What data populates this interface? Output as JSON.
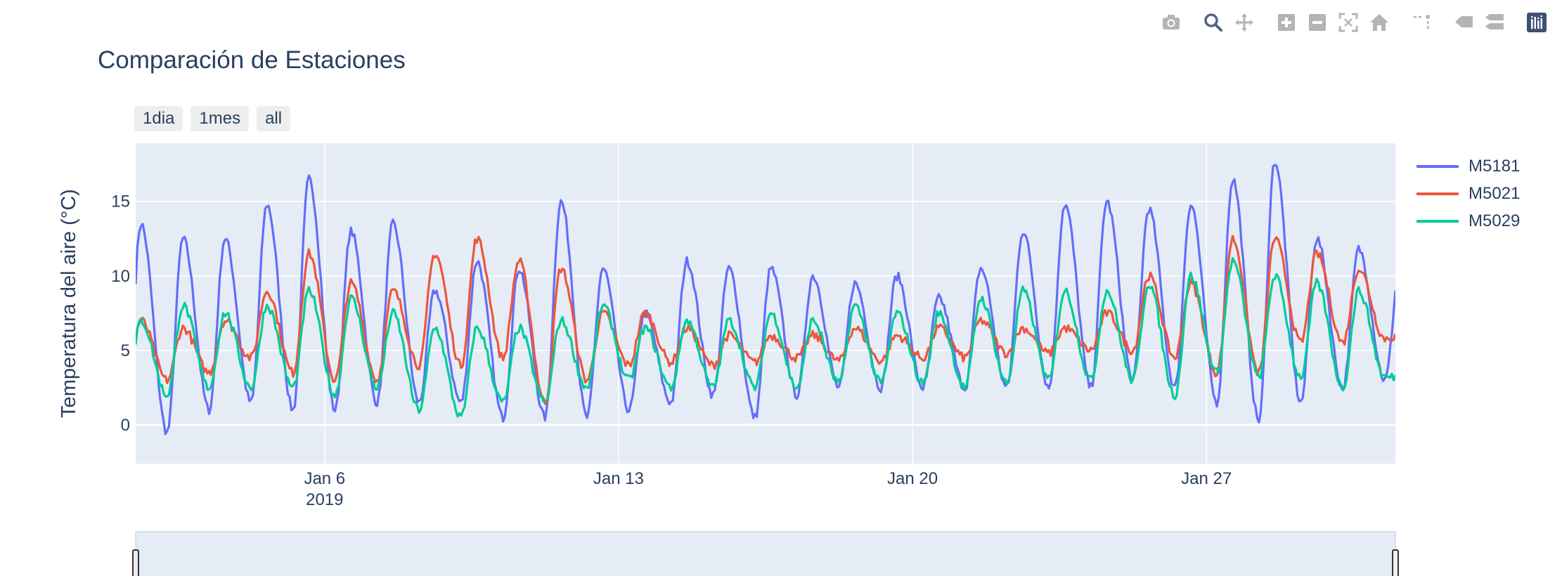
{
  "modebar": {
    "buttons": [
      {
        "icon": "camera-icon"
      },
      {
        "icon": "zoom-icon"
      },
      {
        "icon": "pan-icon"
      },
      {
        "icon": "zoom-in-icon"
      },
      {
        "icon": "zoom-out-icon"
      },
      {
        "icon": "autoscale-icon"
      },
      {
        "icon": "home-icon"
      },
      {
        "icon": "spike-lines-icon"
      },
      {
        "icon": "hover-closest-icon"
      },
      {
        "icon": "hover-compare-icon"
      },
      {
        "icon": "plotly-logo-icon"
      }
    ]
  },
  "range_selector": {
    "buttons": [
      "1dia",
      "1mes",
      "all"
    ]
  },
  "colors": {
    "plot_bg": "#e5ecf6",
    "grid": "#ffffff",
    "text": "#2a3f5f",
    "series": [
      "#636efa",
      "#ef553b",
      "#00cc96"
    ]
  },
  "chart_data": {
    "type": "line",
    "title": "Comparación de Estaciones",
    "xlabel": "",
    "ylabel": "Temperatura del aire (°C)",
    "x_range": [
      "2019-01-01T12:00",
      "2019-01-31T12:00"
    ],
    "xlim": [
      0.5,
      30.5
    ],
    "ylim": [
      -2.6,
      18.9
    ],
    "y_ticks": [
      0,
      5,
      10,
      15
    ],
    "x_ticks": [
      {
        "x": 5,
        "label": "Jan 6",
        "sublabel": "2019"
      },
      {
        "x": 12,
        "label": "Jan 13",
        "sublabel": ""
      },
      {
        "x": 19,
        "label": "Jan 20",
        "sublabel": ""
      },
      {
        "x": 26,
        "label": "Jan 27",
        "sublabel": ""
      }
    ],
    "x_unit": "days since 2019-01-01 00:00",
    "legend_position": "right",
    "grid": true,
    "daily_peak_hour": 15,
    "daily_trough_hour": 6,
    "series": [
      {
        "name": "M5181",
        "color": "#636efa",
        "daily_min": [
          -1.5,
          -0.5,
          1.0,
          1.5,
          1.0,
          1.0,
          1.5,
          1.5,
          1.5,
          0.5,
          0.5,
          0.5,
          1.0,
          1.5,
          2.0,
          0.5,
          2.0,
          2.5,
          2.5,
          2.5,
          2.5,
          2.5,
          2.5,
          2.5,
          3.0,
          2.5,
          1.5,
          0.3,
          1.5,
          2.5,
          3.0
        ],
        "daily_max": [
          13.5,
          12.5,
          12.5,
          14.8,
          16.5,
          13.0,
          13.5,
          9.0,
          11.0,
          10.5,
          15.0,
          10.5,
          7.5,
          11.0,
          10.5,
          10.5,
          10.0,
          9.5,
          10.0,
          8.5,
          10.5,
          13.0,
          14.8,
          15.0,
          14.5,
          14.8,
          16.5,
          17.7,
          12.5,
          11.8,
          11.0
        ]
      },
      {
        "name": "M5021",
        "color": "#ef553b",
        "daily_min": [
          2.2,
          3.0,
          3.5,
          4.5,
          3.5,
          3.0,
          3.0,
          4.0,
          4.0,
          4.5,
          1.5,
          3.0,
          4.0,
          4.2,
          4.0,
          4.2,
          4.5,
          4.3,
          4.3,
          4.5,
          4.5,
          4.8,
          4.8,
          5.0,
          5.0,
          4.5,
          3.5,
          3.5,
          5.5,
          5.5,
          5.8
        ],
        "daily_max": [
          7.0,
          6.5,
          7.0,
          9.0,
          11.5,
          9.5,
          9.0,
          11.5,
          12.5,
          11.0,
          10.5,
          7.5,
          7.5,
          6.5,
          6.0,
          6.0,
          6.0,
          6.5,
          6.0,
          6.5,
          7.0,
          6.5,
          6.5,
          7.5,
          10.0,
          9.5,
          12.5,
          12.5,
          11.5,
          10.5,
          6.0
        ]
      },
      {
        "name": "M5029",
        "color": "#00cc96",
        "daily_min": [
          0.5,
          2.0,
          2.5,
          2.5,
          2.5,
          2.0,
          2.5,
          1.0,
          0.5,
          1.5,
          1.5,
          2.5,
          3.0,
          2.5,
          2.5,
          2.5,
          2.5,
          2.8,
          2.8,
          2.8,
          2.5,
          2.8,
          3.0,
          3.0,
          3.0,
          2.0,
          3.5,
          3.2,
          3.2,
          2.5,
          3.2
        ],
        "daily_max": [
          7.0,
          8.0,
          7.5,
          8.0,
          9.0,
          8.5,
          7.5,
          6.5,
          6.5,
          6.5,
          7.0,
          8.0,
          6.5,
          7.0,
          7.0,
          7.5,
          7.0,
          8.0,
          7.5,
          7.5,
          8.5,
          9.0,
          9.0,
          9.0,
          9.5,
          10.0,
          11.0,
          10.0,
          9.5,
          9.0,
          3.2
        ]
      }
    ]
  }
}
